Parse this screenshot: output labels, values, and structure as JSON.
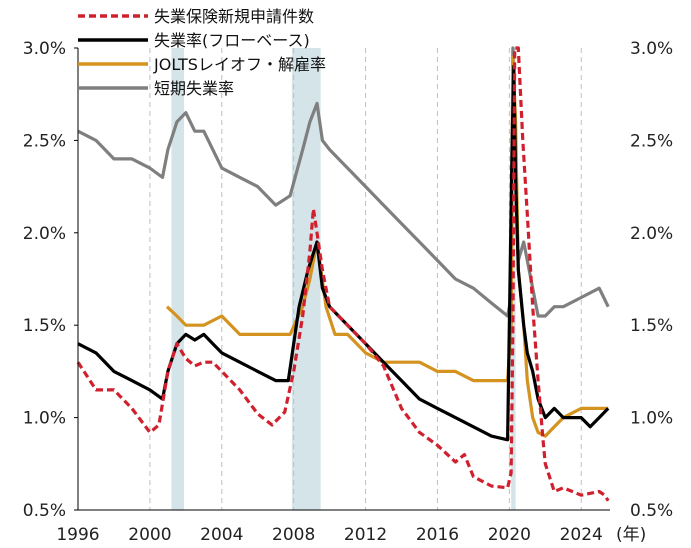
{
  "chart_data": {
    "type": "line",
    "title": "",
    "xlabel": "",
    "ylabel": "",
    "x_unit_label": "(年)",
    "xlim": [
      1996,
      2025.6
    ],
    "ylim": [
      0.5,
      3.0
    ],
    "x_ticks": [
      1996,
      2000,
      2004,
      2008,
      2012,
      2016,
      2020,
      2024
    ],
    "x_tick_labels": [
      "1996",
      "2000",
      "2004",
      "2008",
      "2012",
      "2016",
      "2020",
      "2024"
    ],
    "y_ticks": [
      0.5,
      1.0,
      1.5,
      2.0,
      2.5,
      3.0
    ],
    "y_tick_labels": [
      "0.5%",
      "1.0%",
      "1.5%",
      "2.0%",
      "2.5%",
      "3.0%"
    ],
    "grid": "vertical dashed at x ticks",
    "legend_position": "top-left",
    "recession_shading": [
      {
        "start": 2001.2,
        "end": 2001.9
      },
      {
        "start": 2007.9,
        "end": 2009.5
      },
      {
        "start": 2020.1,
        "end": 2020.35
      }
    ],
    "series": [
      {
        "name": "失業保険新規申請件数",
        "style": "dashed",
        "color": "#d0202e",
        "x": [
          1996,
          1997,
          1998,
          1999,
          2000,
          2000.5,
          2001,
          2001.5,
          2002,
          2002.5,
          2003,
          2003.5,
          2004,
          2005,
          2006,
          2006.8,
          2007.5,
          2008,
          2008.5,
          2008.9,
          2009.1,
          2009.3,
          2009.6,
          2010,
          2011,
          2012,
          2013,
          2014,
          2015,
          2016,
          2017,
          2017.5,
          2018,
          2019,
          2019.9,
          2020.1,
          2020.2,
          2020.3,
          2020.5,
          2020.75,
          2021,
          2021.3,
          2021.6,
          2021.9,
          2022,
          2022.5,
          2023,
          2024,
          2025,
          2025.3,
          2025.5
        ],
        "values": [
          1.3,
          1.15,
          1.15,
          1.05,
          0.92,
          0.96,
          1.25,
          1.4,
          1.32,
          1.28,
          1.3,
          1.3,
          1.25,
          1.15,
          1.02,
          0.96,
          1.03,
          1.25,
          1.55,
          1.9,
          2.13,
          2.0,
          1.8,
          1.6,
          1.5,
          1.4,
          1.28,
          1.05,
          0.92,
          0.85,
          0.76,
          0.8,
          0.68,
          0.63,
          0.62,
          0.7,
          1.5,
          3.0,
          3.0,
          2.5,
          2.1,
          1.6,
          1.2,
          0.85,
          0.75,
          0.6,
          0.62,
          0.58,
          0.6,
          0.58,
          0.55
        ]
      },
      {
        "name": "失業率(フローベース)",
        "style": "solid",
        "color": "#000000",
        "x": [
          1996,
          1997,
          1998,
          1999,
          2000,
          2000.7,
          2001,
          2001.5,
          2002,
          2002.5,
          2003,
          2003.5,
          2004,
          2005,
          2006,
          2007,
          2007.7,
          2008.3,
          2008.8,
          2009.3,
          2009.6,
          2010,
          2011,
          2012,
          2013,
          2014,
          2015,
          2016,
          2017,
          2018,
          2019,
          2019.9,
          2020.15,
          2020.25,
          2020.35,
          2020.5,
          2020.8,
          2021,
          2021.3,
          2021.6,
          2022,
          2022.5,
          2023,
          2024,
          2024.5,
          2025,
          2025.5
        ],
        "values": [
          1.4,
          1.35,
          1.25,
          1.2,
          1.15,
          1.1,
          1.25,
          1.4,
          1.45,
          1.42,
          1.45,
          1.4,
          1.35,
          1.3,
          1.25,
          1.2,
          1.2,
          1.6,
          1.8,
          1.95,
          1.7,
          1.6,
          1.5,
          1.4,
          1.3,
          1.2,
          1.1,
          1.05,
          1.0,
          0.95,
          0.9,
          0.88,
          2.45,
          2.9,
          2.3,
          1.8,
          1.5,
          1.35,
          1.25,
          1.1,
          1.0,
          1.05,
          1.0,
          1.0,
          0.95,
          1.0,
          1.05
        ]
      },
      {
        "name": "JOLTSレイオフ・解雇率",
        "style": "solid",
        "color": "#d4921f",
        "x": [
          2000.95,
          2001.5,
          2002,
          2003,
          2004,
          2005,
          2006,
          2007,
          2007.8,
          2008.5,
          2008.9,
          2009.3,
          2009.8,
          2010.3,
          2011,
          2012,
          2013,
          2014,
          2015,
          2016,
          2017,
          2018,
          2019,
          2019.9,
          2020.1,
          2020.2,
          2020.35,
          2020.5,
          2020.8,
          2021,
          2021.3,
          2021.6,
          2022,
          2022.5,
          2023,
          2024,
          2025,
          2025.5
        ],
        "values": [
          1.6,
          1.55,
          1.5,
          1.5,
          1.55,
          1.45,
          1.45,
          1.45,
          1.45,
          1.6,
          1.75,
          1.95,
          1.6,
          1.45,
          1.45,
          1.35,
          1.3,
          1.3,
          1.3,
          1.25,
          1.25,
          1.2,
          1.2,
          1.2,
          1.5,
          2.95,
          2.6,
          1.8,
          1.5,
          1.2,
          1.0,
          0.92,
          0.9,
          0.95,
          1.0,
          1.05,
          1.05,
          1.05
        ]
      },
      {
        "name": "短期失業率",
        "style": "solid",
        "color": "#7f7f7f",
        "x": [
          1996,
          1997,
          1998,
          1999,
          2000,
          2000.7,
          2001,
          2001.5,
          2002,
          2002.5,
          2003,
          2003.5,
          2004,
          2005,
          2006,
          2007,
          2007.8,
          2008.5,
          2008.9,
          2009.3,
          2009.6,
          2010,
          2011,
          2012,
          2013,
          2014,
          2015,
          2016,
          2017,
          2018,
          2019,
          2019.9,
          2020.1,
          2020.2,
          2020.35,
          2020.5,
          2020.8,
          2021,
          2021.3,
          2021.6,
          2022,
          2022.5,
          2023,
          2024,
          2025,
          2025.5
        ],
        "values": [
          2.55,
          2.5,
          2.4,
          2.4,
          2.35,
          2.3,
          2.45,
          2.6,
          2.65,
          2.55,
          2.55,
          2.45,
          2.35,
          2.3,
          2.25,
          2.15,
          2.2,
          2.45,
          2.6,
          2.7,
          2.5,
          2.45,
          2.35,
          2.25,
          2.15,
          2.05,
          1.95,
          1.85,
          1.75,
          1.7,
          1.62,
          1.55,
          1.65,
          3.0,
          2.3,
          1.85,
          1.95,
          1.85,
          1.7,
          1.55,
          1.55,
          1.6,
          1.6,
          1.65,
          1.7,
          1.6
        ]
      }
    ]
  }
}
